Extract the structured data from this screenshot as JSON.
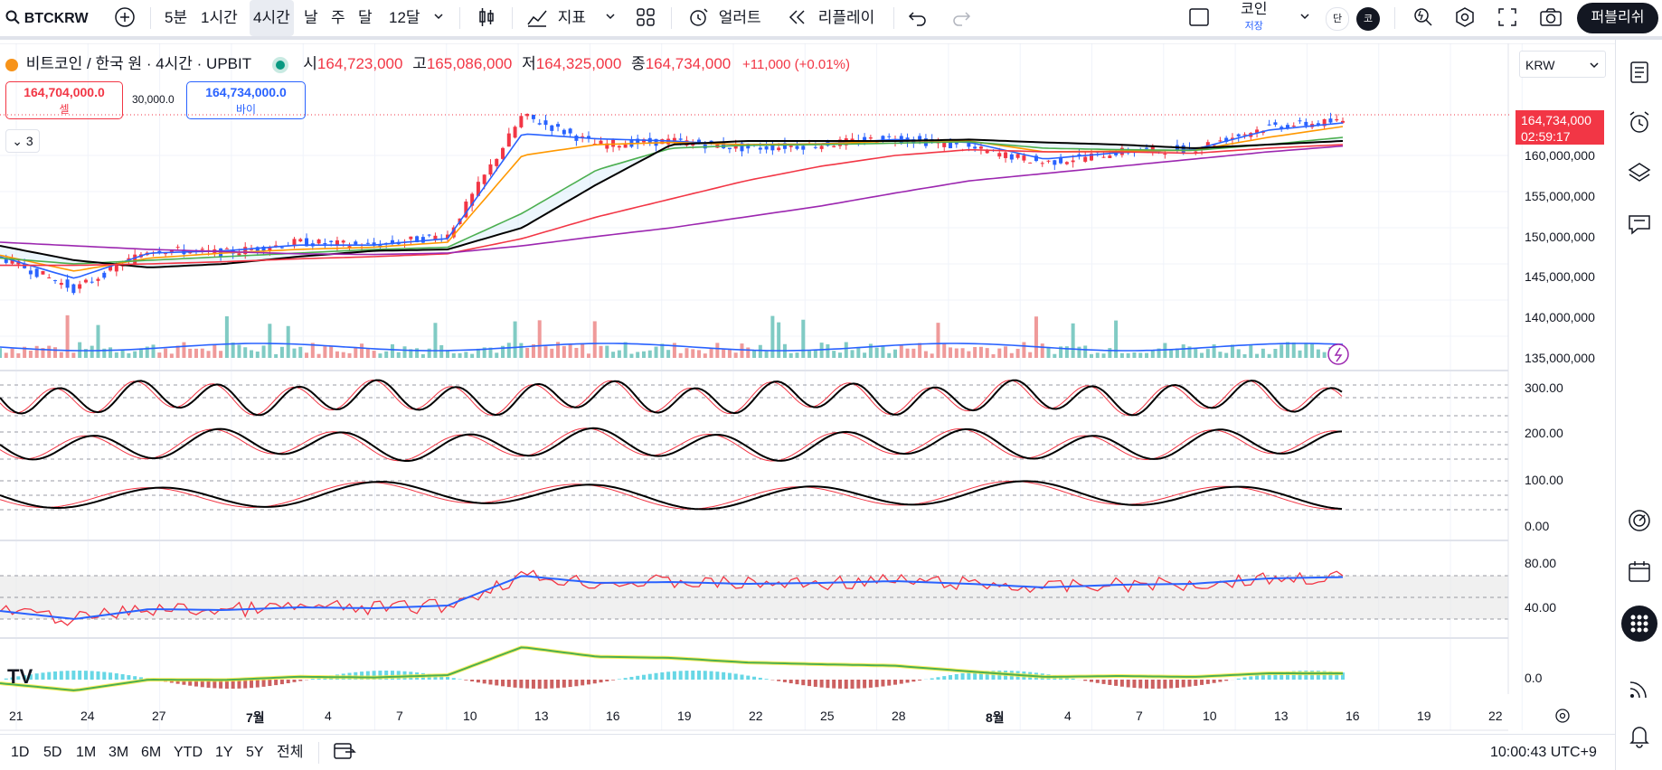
{
  "toolbar": {
    "symbol": "BTCKRW",
    "intervals": [
      "5분",
      "1시간",
      "4시간",
      "날",
      "주",
      "달",
      "12달"
    ],
    "active_interval": "4시간",
    "indicators_label": "지표",
    "alert_label": "얼러트",
    "replay_label": "리플레이",
    "layout_name": "코인",
    "layout_sub": "저장",
    "avatar_left": "단",
    "avatar_right": "코",
    "publish_label": "퍼블리쉬"
  },
  "legend": {
    "title": "비트코인 / 한국 원 · 4시간 · UPBIT",
    "open_label": "시",
    "open": "164,723,000",
    "high_label": "고",
    "high": "165,086,000",
    "low_label": "저",
    "low": "164,325,000",
    "close_label": "종",
    "close": "164,734,000",
    "change": "+11,000 (+0.01%)"
  },
  "trade": {
    "sell_price": "164,704,000.0",
    "sell_label": "셀",
    "spread": "30,000.0",
    "buy_price": "164,734,000.0",
    "buy_label": "바이"
  },
  "collapse_count": "3",
  "currency": "KRW",
  "price_tag": {
    "price": "164,734,000",
    "countdown": "02:59:17"
  },
  "price_axis": [
    "160,000,000",
    "155,000,000",
    "150,000,000",
    "145,000,000",
    "140,000,000",
    "135,000,000"
  ],
  "stoch_axis": [
    "300.00",
    "200.00",
    "100.00",
    "0.00"
  ],
  "rsi_axis": [
    "80.00",
    "40.00"
  ],
  "macd_axis": [
    "0.0"
  ],
  "time_axis": [
    "21",
    "24",
    "27",
    "7월",
    "4",
    "7",
    "10",
    "13",
    "16",
    "19",
    "22",
    "25",
    "28",
    "8월",
    "4",
    "7",
    "10",
    "13",
    "16",
    "19",
    "22"
  ],
  "ranges": [
    "1D",
    "5D",
    "1M",
    "3M",
    "6M",
    "YTD",
    "1Y",
    "5Y",
    "전체"
  ],
  "clock": "10:00:43 UTC+9",
  "colors": {
    "up": "#f23645",
    "down": "#2962ff",
    "ma_red": "#f23645",
    "ma_blue": "#2962ff",
    "ma_orange": "#ff9800",
    "ma_green": "#4caf50",
    "ma_black": "#000000",
    "ma_purple": "#9c27b0",
    "volume_up": "#ef9a9a",
    "volume_down": "#80cbc4"
  },
  "chart_data": {
    "type": "line",
    "title": "비트코인 / 한국 원 · 4시간 · UPBIT",
    "ylim": [
      133000000,
      168000000
    ],
    "x": [
      "6/21",
      "6/24",
      "6/27",
      "7/1",
      "7/4",
      "7/7",
      "7/10",
      "7/13",
      "7/16",
      "7/19",
      "7/22",
      "7/25",
      "7/28",
      "8/1",
      "8/4",
      "8/7",
      "8/10",
      "8/13",
      "8/15"
    ],
    "series": [
      {
        "name": "close",
        "values": [
          146000000,
          141500000,
          147000000,
          146500000,
          148000000,
          147500000,
          149000000,
          165500000,
          161500000,
          162000000,
          161000000,
          161500000,
          162500000,
          161000000,
          159000000,
          160500000,
          161000000,
          164000000,
          164734000
        ]
      },
      {
        "name": "ma_short",
        "values": [
          146000000,
          143000000,
          146500000,
          146800000,
          147600000,
          147600000,
          148500000,
          163000000,
          162300000,
          162000000,
          161400000,
          161600000,
          162200000,
          161800000,
          159500000,
          160400000,
          160800000,
          163500000,
          164500000
        ]
      },
      {
        "name": "ma_orange",
        "values": [
          146200000,
          144000000,
          145800000,
          146500000,
          147000000,
          147300000,
          148000000,
          160000000,
          161500000,
          161800000,
          161500000,
          161600000,
          162000000,
          162000000,
          160500000,
          160600000,
          160700000,
          162500000,
          164000000
        ]
      },
      {
        "name": "ma_green",
        "values": [
          145800000,
          145000000,
          145500000,
          146000000,
          146500000,
          147000000,
          147300000,
          152000000,
          158000000,
          161000000,
          161400000,
          161500000,
          161700000,
          161900000,
          161000000,
          160800000,
          160700000,
          161500000,
          162500000
        ]
      },
      {
        "name": "ma_black",
        "values": [
          147500000,
          145500000,
          144500000,
          145000000,
          146000000,
          146800000,
          147000000,
          150000000,
          156000000,
          161500000,
          162000000,
          162000000,
          162000000,
          162200000,
          161800000,
          161500000,
          161000000,
          161500000,
          162000000
        ]
      },
      {
        "name": "ma_red_long",
        "values": [
          144800000,
          144800000,
          145000000,
          145300000,
          145700000,
          146000000,
          146400000,
          148500000,
          151500000,
          154000000,
          156500000,
          158500000,
          160000000,
          160800000,
          160500000,
          160500000,
          160300000,
          161000000,
          161500000
        ]
      },
      {
        "name": "ma_purple",
        "values": [
          148000000,
          147500000,
          147000000,
          146700000,
          146400000,
          146300000,
          146500000,
          147500000,
          148800000,
          150000000,
          151500000,
          153000000,
          154800000,
          156500000,
          157500000,
          158500000,
          159500000,
          160500000,
          161300000
        ]
      }
    ]
  }
}
